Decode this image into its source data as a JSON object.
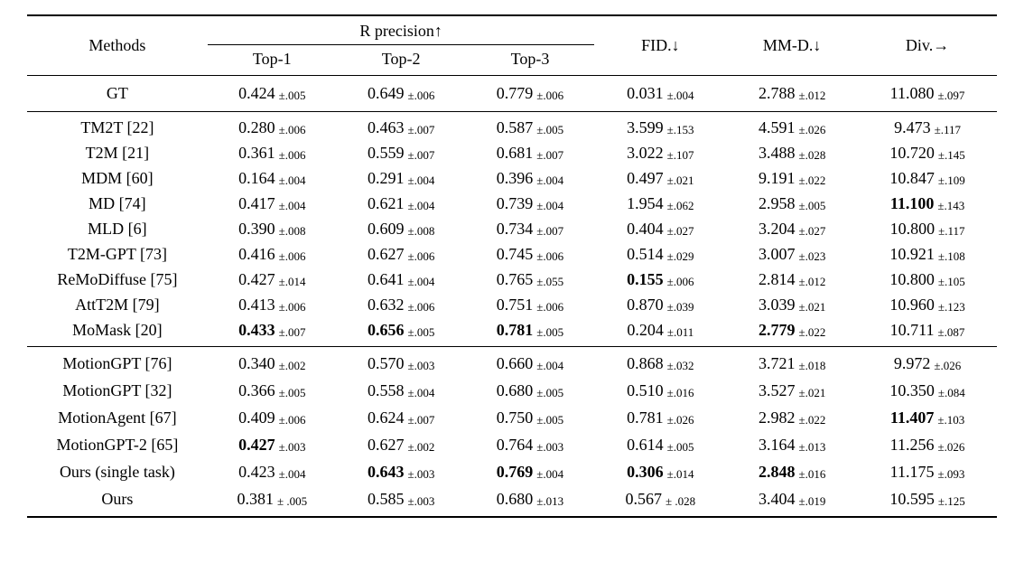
{
  "table": {
    "header": {
      "methods": "Methods",
      "r_precision": "R precision↑",
      "sub": [
        "Top-1",
        "Top-2",
        "Top-3"
      ],
      "fid": "FID.↓",
      "mmd": "MM-D.↓",
      "div": "Div.→"
    },
    "groups": [
      {
        "name": "ground-truth",
        "rows": [
          {
            "method": "GT",
            "cells": [
              [
                "0.424",
                "±.005",
                0
              ],
              [
                "0.649",
                "±.006",
                0
              ],
              [
                "0.779",
                "±.006",
                0
              ],
              [
                "0.031",
                "±.004",
                0
              ],
              [
                "2.788",
                "±.012",
                0
              ],
              [
                "11.080",
                "±.097",
                0
              ]
            ]
          }
        ]
      },
      {
        "name": "prior-methods",
        "rows": [
          {
            "method": "TM2T [22]",
            "cells": [
              [
                "0.280",
                "±.006",
                0
              ],
              [
                "0.463",
                "±.007",
                0
              ],
              [
                "0.587",
                "±.005",
                0
              ],
              [
                "3.599",
                "±.153",
                0
              ],
              [
                "4.591",
                "±.026",
                0
              ],
              [
                "9.473",
                "±.117",
                0
              ]
            ]
          },
          {
            "method": "T2M [21]",
            "cells": [
              [
                "0.361",
                "±.006",
                0
              ],
              [
                "0.559",
                "±.007",
                0
              ],
              [
                "0.681",
                "±.007",
                0
              ],
              [
                "3.022",
                "±.107",
                0
              ],
              [
                "3.488",
                "±.028",
                0
              ],
              [
                "10.720",
                "±.145",
                0
              ]
            ]
          },
          {
            "method": "MDM [60]",
            "cells": [
              [
                "0.164",
                "±.004",
                0
              ],
              [
                "0.291",
                "±.004",
                0
              ],
              [
                "0.396",
                "±.004",
                0
              ],
              [
                "0.497",
                "±.021",
                0
              ],
              [
                "9.191",
                "±.022",
                0
              ],
              [
                "10.847",
                "±.109",
                0
              ]
            ]
          },
          {
            "method": "MD [74]",
            "cells": [
              [
                "0.417",
                "±.004",
                0
              ],
              [
                "0.621",
                "±.004",
                0
              ],
              [
                "0.739",
                "±.004",
                0
              ],
              [
                "1.954",
                "±.062",
                0
              ],
              [
                "2.958",
                "±.005",
                0
              ],
              [
                "11.100",
                "±.143",
                1
              ]
            ]
          },
          {
            "method": "MLD [6]",
            "cells": [
              [
                "0.390",
                "±.008",
                0
              ],
              [
                "0.609",
                "±.008",
                0
              ],
              [
                "0.734",
                "±.007",
                0
              ],
              [
                "0.404",
                "±.027",
                0
              ],
              [
                "3.204",
                "±.027",
                0
              ],
              [
                "10.800",
                "±.117",
                0
              ]
            ]
          },
          {
            "method": "T2M-GPT [73]",
            "cells": [
              [
                "0.416",
                "±.006",
                0
              ],
              [
                "0.627",
                "±.006",
                0
              ],
              [
                "0.745",
                "±.006",
                0
              ],
              [
                "0.514",
                "±.029",
                0
              ],
              [
                "3.007",
                "±.023",
                0
              ],
              [
                "10.921",
                "±.108",
                0
              ]
            ]
          },
          {
            "method": "ReMoDiffuse [75]",
            "cells": [
              [
                "0.427",
                "±.014",
                0
              ],
              [
                "0.641",
                "±.004",
                0
              ],
              [
                "0.765",
                "±.055",
                0
              ],
              [
                "0.155",
                "±.006",
                1
              ],
              [
                "2.814",
                "±.012",
                0
              ],
              [
                "10.800",
                "±.105",
                0
              ]
            ]
          },
          {
            "method": "AttT2M [79]",
            "cells": [
              [
                "0.413",
                "±.006",
                0
              ],
              [
                "0.632",
                "±.006",
                0
              ],
              [
                "0.751",
                "±.006",
                0
              ],
              [
                "0.870",
                "±.039",
                0
              ],
              [
                "3.039",
                "±.021",
                0
              ],
              [
                "10.960",
                "±.123",
                0
              ]
            ]
          },
          {
            "method": "MoMask [20]",
            "cells": [
              [
                "0.433",
                "±.007",
                1
              ],
              [
                "0.656",
                "±.005",
                1
              ],
              [
                "0.781",
                "±.005",
                1
              ],
              [
                "0.204",
                "±.011",
                0
              ],
              [
                "2.779",
                "±.022",
                1
              ],
              [
                "10.711",
                "±.087",
                0
              ]
            ]
          }
        ]
      },
      {
        "name": "llm-based-methods",
        "rows": [
          {
            "method": "MotionGPT [76]",
            "cells": [
              [
                "0.340",
                "±.002",
                0
              ],
              [
                "0.570",
                "±.003",
                0
              ],
              [
                "0.660",
                "±.004",
                0
              ],
              [
                "0.868",
                "±.032",
                0
              ],
              [
                "3.721",
                "±.018",
                0
              ],
              [
                "9.972",
                "±.026",
                0
              ]
            ]
          },
          {
            "method": "MotionGPT [32]",
            "cells": [
              [
                "0.366",
                "±.005",
                0
              ],
              [
                "0.558",
                "±.004",
                0
              ],
              [
                "0.680",
                "±.005",
                0
              ],
              [
                "0.510",
                "±.016",
                0
              ],
              [
                "3.527",
                "±.021",
                0
              ],
              [
                "10.350",
                "±.084",
                0
              ]
            ]
          },
          {
            "method": "MotionAgent [67]",
            "cells": [
              [
                "0.409",
                "±.006",
                0
              ],
              [
                "0.624",
                "±.007",
                0
              ],
              [
                "0.750",
                "±.005",
                0
              ],
              [
                "0.781",
                "±.026",
                0
              ],
              [
                "2.982",
                "±.022",
                0
              ],
              [
                "11.407",
                "±.103",
                1
              ]
            ]
          },
          {
            "method": "MotionGPT-2 [65]",
            "cells": [
              [
                "0.427",
                "±.003",
                1
              ],
              [
                "0.627",
                "±.002",
                0
              ],
              [
                "0.764",
                "±.003",
                0
              ],
              [
                "0.614",
                "±.005",
                0
              ],
              [
                "3.164",
                "±.013",
                0
              ],
              [
                "11.256",
                "±.026",
                0
              ]
            ]
          },
          {
            "method": "Ours (single task)",
            "cells": [
              [
                "0.423",
                "±.004",
                0
              ],
              [
                "0.643",
                "±.003",
                1
              ],
              [
                "0.769",
                "±.004",
                1
              ],
              [
                "0.306",
                "±.014",
                1
              ],
              [
                "2.848",
                "±.016",
                1
              ],
              [
                "11.175",
                "±.093",
                0
              ]
            ]
          },
          {
            "method": "Ours",
            "cells": [
              [
                "0.381",
                "± .005",
                0
              ],
              [
                "0.585",
                "±.003",
                0
              ],
              [
                "0.680",
                "±.013",
                0
              ],
              [
                "0.567",
                "± .028",
                0
              ],
              [
                "3.404",
                "±.019",
                0
              ],
              [
                "10.595",
                "±.125",
                0
              ]
            ]
          }
        ]
      }
    ]
  }
}
